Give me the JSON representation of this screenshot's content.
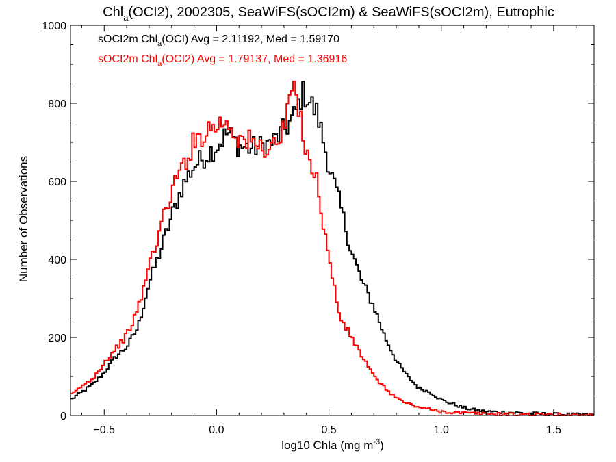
{
  "chart_data": {
    "type": "line",
    "title": {
      "prefix": "Chl",
      "sub": "a",
      "suffix": "(OCI2), 2002305, SeaWiFS(sOCI2m) & SeaWiFS(sOCI2m), Eutrophic"
    },
    "xlabel": {
      "prefix": "log10 Chla (mg m",
      "sup": "-3",
      "suffix": ")"
    },
    "ylabel": "Number of Observations",
    "xlim": [
      -0.65,
      1.68
    ],
    "ylim": [
      0,
      1000
    ],
    "x_ticks": [
      {
        "value": -0.5,
        "label": "−0.5"
      },
      {
        "value": 0.0,
        "label": "0.0"
      },
      {
        "value": 0.5,
        "label": "0.5"
      },
      {
        "value": 1.0,
        "label": "1.0"
      },
      {
        "value": 1.5,
        "label": "1.5"
      }
    ],
    "y_ticks": [
      {
        "value": 0,
        "label": "0"
      },
      {
        "value": 200,
        "label": "200"
      },
      {
        "value": 400,
        "label": "400"
      },
      {
        "value": 600,
        "label": "600"
      },
      {
        "value": 800,
        "label": "800"
      },
      {
        "value": 1000,
        "label": "1000"
      }
    ],
    "legend": [
      {
        "prefix": "sOCI2m Chl",
        "sub": "a",
        "suffix": "(OCI) Avg = 2.11192, Med = 1.59170",
        "color": "#000000"
      },
      {
        "prefix": "sOCI2m Chl",
        "sub": "a",
        "suffix": "(OCI2) Avg = 1.79137, Med = 1.36916",
        "color": "#ff0000"
      }
    ],
    "series": [
      {
        "color": "#000000",
        "x": [
          -0.65,
          -0.6,
          -0.55,
          -0.5,
          -0.45,
          -0.4,
          -0.35,
          -0.3,
          -0.25,
          -0.2,
          -0.15,
          -0.1,
          -0.05,
          0.0,
          0.05,
          0.1,
          0.15,
          0.2,
          0.25,
          0.3,
          0.35,
          0.38,
          0.4,
          0.42,
          0.45,
          0.5,
          0.55,
          0.6,
          0.65,
          0.7,
          0.75,
          0.8,
          0.85,
          0.9,
          0.95,
          1.0,
          1.05,
          1.1,
          1.15,
          1.2,
          1.3,
          1.4,
          1.5,
          1.6,
          1.68
        ],
        "y": [
          40,
          60,
          80,
          110,
          150,
          175,
          225,
          340,
          420,
          510,
          590,
          640,
          665,
          690,
          725,
          690,
          685,
          690,
          700,
          730,
          770,
          825,
          820,
          800,
          770,
          640,
          540,
          420,
          340,
          280,
          200,
          140,
          100,
          70,
          60,
          40,
          30,
          20,
          14,
          10,
          8,
          5,
          3,
          2,
          2
        ]
      },
      {
        "color": "#ff0000",
        "x": [
          -0.65,
          -0.6,
          -0.55,
          -0.5,
          -0.45,
          -0.4,
          -0.35,
          -0.3,
          -0.25,
          -0.2,
          -0.15,
          -0.1,
          -0.05,
          0.0,
          0.05,
          0.1,
          0.15,
          0.2,
          0.25,
          0.3,
          0.33,
          0.35,
          0.38,
          0.4,
          0.45,
          0.5,
          0.55,
          0.6,
          0.65,
          0.7,
          0.75,
          0.8,
          0.85,
          0.9,
          0.95,
          1.0,
          1.05,
          1.1,
          1.2,
          1.3,
          1.4,
          1.5,
          1.6,
          1.68
        ],
        "y": [
          50,
          75,
          95,
          135,
          170,
          205,
          270,
          385,
          480,
          575,
          640,
          700,
          730,
          745,
          755,
          710,
          700,
          685,
          690,
          725,
          840,
          815,
          745,
          685,
          590,
          400,
          250,
          200,
          150,
          100,
          70,
          45,
          30,
          22,
          15,
          10,
          8,
          6,
          4,
          3,
          2,
          2,
          1,
          1
        ]
      }
    ]
  }
}
